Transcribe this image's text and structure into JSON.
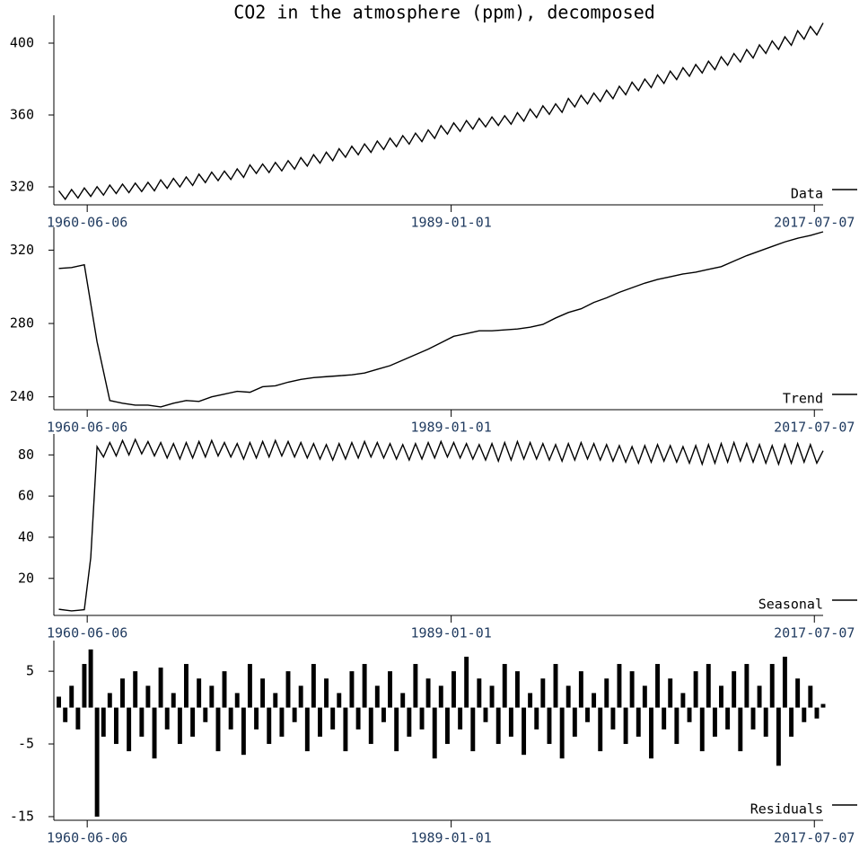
{
  "title": "CO2 in the atmosphere (ppm), decomposed",
  "chart_data": [
    {
      "type": "line",
      "x": [
        "1958-03-15",
        "1958-09-15",
        "1959-03-15",
        "1959-09-15",
        "1960-03-15",
        "1960-09-15",
        "1961-03-15",
        "1961-09-15",
        "1962-03-15",
        "1962-09-15",
        "1963-03-15",
        "1963-09-15",
        "1964-03-15",
        "1964-09-15",
        "1965-03-15",
        "1965-09-15",
        "1966-03-15",
        "1966-09-15",
        "1967-03-15",
        "1967-09-15",
        "1968-03-15",
        "1968-09-15",
        "1969-03-15",
        "1969-09-15",
        "1970-03-15",
        "1970-09-15",
        "1971-03-15",
        "1971-09-15",
        "1972-03-15",
        "1972-09-15",
        "1973-03-15",
        "1973-09-15",
        "1974-03-15",
        "1974-09-15",
        "1975-03-15",
        "1975-09-15",
        "1976-03-15",
        "1976-09-15",
        "1977-03-15",
        "1977-09-15",
        "1978-03-15",
        "1978-09-15",
        "1979-03-15",
        "1979-09-15",
        "1980-03-15",
        "1980-09-15",
        "1981-03-15",
        "1981-09-15",
        "1982-03-15",
        "1982-09-15",
        "1983-03-15",
        "1983-09-15",
        "1984-03-15",
        "1984-09-15",
        "1985-03-15",
        "1985-09-15",
        "1986-03-15",
        "1986-09-15",
        "1987-03-15",
        "1987-09-15",
        "1988-03-15",
        "1988-09-15",
        "1989-03-15",
        "1989-09-15",
        "1990-03-15",
        "1990-09-15",
        "1991-03-15",
        "1991-09-15",
        "1992-03-15",
        "1992-09-15",
        "1993-03-15",
        "1993-09-15",
        "1994-03-15",
        "1994-09-15",
        "1995-03-15",
        "1995-09-15",
        "1996-03-15",
        "1996-09-15",
        "1997-03-15",
        "1997-09-15",
        "1998-03-15",
        "1998-09-15",
        "1999-03-15",
        "1999-09-15",
        "2000-03-15",
        "2000-09-15",
        "2001-03-15",
        "2001-09-15",
        "2002-03-15",
        "2002-09-15",
        "2003-03-15",
        "2003-09-15",
        "2004-03-15",
        "2004-09-15",
        "2005-03-15",
        "2005-09-15",
        "2006-03-15",
        "2006-09-15",
        "2007-03-15",
        "2007-09-15",
        "2008-03-15",
        "2008-09-15",
        "2009-03-15",
        "2009-09-15",
        "2010-03-15",
        "2010-09-15",
        "2011-03-15",
        "2011-09-15",
        "2012-03-15",
        "2012-09-15",
        "2013-03-15",
        "2013-09-15",
        "2014-03-15",
        "2014-09-15",
        "2015-03-15",
        "2015-09-15",
        "2016-03-15",
        "2016-09-15",
        "2017-03-15",
        "2017-09-15",
        "2018-03-15"
      ],
      "series": [
        {
          "name": "Data",
          "color": "#000000",
          "values": [
            317.8,
            313.1,
            318.5,
            313.8,
            319.4,
            314.7,
            320.1,
            315.4,
            321.0,
            316.3,
            321.5,
            316.8,
            322.1,
            317.4,
            322.5,
            317.8,
            323.9,
            319.2,
            324.7,
            320.0,
            325.5,
            320.8,
            327.1,
            322.4,
            328.2,
            323.5,
            328.8,
            324.1,
            330.0,
            325.3,
            332.2,
            327.5,
            332.7,
            328.0,
            333.6,
            328.9,
            334.6,
            329.9,
            336.3,
            331.6,
            337.9,
            333.2,
            339.3,
            334.6,
            341.2,
            336.5,
            342.6,
            337.9,
            343.9,
            339.2,
            345.5,
            340.8,
            347.1,
            342.4,
            348.5,
            343.8,
            349.9,
            345.2,
            351.7,
            347.0,
            354.1,
            349.4,
            355.6,
            350.9,
            356.9,
            352.2,
            358.1,
            353.4,
            358.9,
            354.2,
            359.6,
            354.9,
            361.3,
            356.6,
            363.3,
            358.6,
            365.1,
            360.4,
            366.2,
            361.5,
            369.2,
            364.5,
            370.9,
            366.2,
            372.2,
            367.5,
            373.8,
            369.1,
            376.0,
            371.3,
            378.3,
            373.6,
            380.0,
            375.3,
            382.3,
            377.6,
            384.4,
            379.7,
            386.3,
            381.6,
            388.1,
            383.4,
            389.9,
            385.2,
            392.4,
            387.7,
            394.2,
            389.5,
            396.4,
            391.7,
            399.0,
            394.3,
            401.2,
            396.5,
            403.5,
            398.8,
            406.9,
            402.2,
            409.3,
            404.6,
            411.2
          ]
        }
      ],
      "xlim": [
        "1958-03-01",
        "2018-03-15"
      ],
      "xticks": [
        "1960-06-06",
        "1989-01-01",
        "2017-07-07"
      ],
      "ylim": [
        310,
        413
      ],
      "yticks": [
        320,
        360,
        400
      ]
    },
    {
      "type": "line",
      "x": [
        "1958-03-15",
        "1959-03-15",
        "1960-03-15",
        "1961-03-15",
        "1962-03-15",
        "1963-03-15",
        "1964-03-15",
        "1965-03-15",
        "1966-03-15",
        "1967-03-15",
        "1968-03-15",
        "1969-03-15",
        "1970-03-15",
        "1971-03-15",
        "1972-03-15",
        "1973-03-15",
        "1974-03-15",
        "1975-03-15",
        "1976-03-15",
        "1977-03-15",
        "1978-03-15",
        "1979-03-15",
        "1980-03-15",
        "1981-03-15",
        "1982-03-15",
        "1983-03-15",
        "1984-03-15",
        "1985-03-15",
        "1986-03-15",
        "1987-03-15",
        "1988-03-15",
        "1989-03-15",
        "1990-03-15",
        "1991-03-15",
        "1992-03-15",
        "1993-03-15",
        "1994-03-15",
        "1995-03-15",
        "1996-03-15",
        "1997-03-15",
        "1998-03-15",
        "1999-03-15",
        "2000-03-15",
        "2001-03-15",
        "2002-03-15",
        "2003-03-15",
        "2004-03-15",
        "2005-03-15",
        "2006-03-15",
        "2007-03-15",
        "2008-03-15",
        "2009-03-15",
        "2010-03-15",
        "2011-03-15",
        "2012-03-15",
        "2013-03-15",
        "2014-03-15",
        "2015-03-15",
        "2016-03-15",
        "2017-03-15",
        "2018-03-15"
      ],
      "series": [
        {
          "name": "Trend",
          "color": "#000000",
          "values": [
            310,
            310.5,
            312,
            270,
            238,
            236.5,
            235.5,
            235.5,
            234.5,
            236.5,
            238,
            237.5,
            240,
            241.5,
            243,
            242.5,
            245.5,
            246,
            248,
            249.5,
            250.5,
            251,
            251.5,
            252,
            253,
            255,
            257,
            260,
            263,
            266,
            269.5,
            273,
            274.5,
            276,
            276,
            276.5,
            277,
            278,
            279.5,
            283,
            286,
            288,
            291.5,
            294,
            297,
            299.5,
            302,
            304,
            305.5,
            307,
            308,
            309.5,
            311,
            314,
            317,
            319.5,
            322,
            324.5,
            326.5,
            328,
            330
          ]
        }
      ],
      "xlim": [
        "1958-03-01",
        "2018-03-15"
      ],
      "xticks": [
        "1960-06-06",
        "1989-01-01",
        "2017-07-07"
      ],
      "ylim": [
        233,
        330
      ],
      "yticks": [
        240,
        280,
        320
      ]
    },
    {
      "type": "line",
      "x": [
        "1958-03-15",
        "1958-09-15",
        "1959-03-15",
        "1959-09-15",
        "1960-03-15",
        "1960-09-15",
        "1961-03-15",
        "1961-09-15",
        "1962-03-15",
        "1962-09-15",
        "1963-03-15",
        "1963-09-15",
        "1964-03-15",
        "1964-09-15",
        "1965-03-15",
        "1965-09-15",
        "1966-03-15",
        "1966-09-15",
        "1967-03-15",
        "1967-09-15",
        "1968-03-15",
        "1968-09-15",
        "1969-03-15",
        "1969-09-15",
        "1970-03-15",
        "1970-09-15",
        "1971-03-15",
        "1971-09-15",
        "1972-03-15",
        "1972-09-15",
        "1973-03-15",
        "1973-09-15",
        "1974-03-15",
        "1974-09-15",
        "1975-03-15",
        "1975-09-15",
        "1976-03-15",
        "1976-09-15",
        "1977-03-15",
        "1977-09-15",
        "1978-03-15",
        "1978-09-15",
        "1979-03-15",
        "1979-09-15",
        "1980-03-15",
        "1980-09-15",
        "1981-03-15",
        "1981-09-15",
        "1982-03-15",
        "1982-09-15",
        "1983-03-15",
        "1983-09-15",
        "1984-03-15",
        "1984-09-15",
        "1985-03-15",
        "1985-09-15",
        "1986-03-15",
        "1986-09-15",
        "1987-03-15",
        "1987-09-15",
        "1988-03-15",
        "1988-09-15",
        "1989-03-15",
        "1989-09-15",
        "1990-03-15",
        "1990-09-15",
        "1991-03-15",
        "1991-09-15",
        "1992-03-15",
        "1992-09-15",
        "1993-03-15",
        "1993-09-15",
        "1994-03-15",
        "1994-09-15",
        "1995-03-15",
        "1995-09-15",
        "1996-03-15",
        "1996-09-15",
        "1997-03-15",
        "1997-09-15",
        "1998-03-15",
        "1998-09-15",
        "1999-03-15",
        "1999-09-15",
        "2000-03-15",
        "2000-09-15",
        "2001-03-15",
        "2001-09-15",
        "2002-03-15",
        "2002-09-15",
        "2003-03-15",
        "2003-09-15",
        "2004-03-15",
        "2004-09-15",
        "2005-03-15",
        "2005-09-15",
        "2006-03-15",
        "2006-09-15",
        "2007-03-15",
        "2007-09-15",
        "2008-03-15",
        "2008-09-15",
        "2009-03-15",
        "2009-09-15",
        "2010-03-15",
        "2010-09-15",
        "2011-03-15",
        "2011-09-15",
        "2012-03-15",
        "2012-09-15",
        "2013-03-15",
        "2013-09-15",
        "2014-03-15",
        "2014-09-15",
        "2015-03-15",
        "2015-09-15",
        "2016-03-15",
        "2016-09-15",
        "2017-03-15",
        "2017-09-15",
        "2018-03-15"
      ],
      "series": [
        {
          "name": "Seasonal",
          "color": "#000000",
          "values": [
            5,
            4.6,
            4.2,
            4.5,
            4.8,
            30,
            84,
            79,
            86,
            79.5,
            87,
            80,
            87.5,
            80.5,
            86.5,
            79.5,
            86,
            78.5,
            85.5,
            78,
            86,
            78.5,
            86.5,
            79,
            87,
            79.5,
            86,
            79,
            85.5,
            78,
            86,
            78.5,
            86.5,
            79,
            87,
            79.5,
            86.5,
            79,
            86,
            78.5,
            85.5,
            78,
            85,
            77.5,
            85.5,
            78,
            86,
            78.5,
            86.5,
            79,
            86,
            78.5,
            85.5,
            78,
            85,
            77.5,
            85.5,
            78,
            86,
            78.5,
            86.5,
            79,
            86,
            78.5,
            85.5,
            78,
            85,
            77.5,
            85.5,
            77,
            86,
            77.5,
            86.5,
            78,
            86,
            78,
            85.5,
            77.5,
            85,
            77,
            85.5,
            77.5,
            86,
            78,
            85.5,
            77.5,
            85,
            77,
            84.5,
            76.5,
            84,
            76,
            84.5,
            76.5,
            85,
            77,
            84.5,
            76.5,
            84,
            76,
            84.5,
            75.5,
            85,
            76,
            85.5,
            76.5,
            86,
            77,
            85.5,
            76.5,
            85,
            76,
            84.5,
            75.5,
            85,
            76,
            85.5,
            76.5,
            85,
            76,
            82
          ]
        }
      ],
      "xlim": [
        "1958-03-01",
        "2018-03-15"
      ],
      "xticks": [
        "1960-06-06",
        "1989-01-01",
        "2017-07-07"
      ],
      "ylim": [
        2,
        88
      ],
      "yticks": [
        20,
        40,
        60,
        80
      ]
    },
    {
      "type": "bar",
      "x": [
        "1958-03-15",
        "1958-09-15",
        "1959-03-15",
        "1959-09-15",
        "1960-03-15",
        "1960-09-15",
        "1961-03-15",
        "1961-09-15",
        "1962-03-15",
        "1962-09-15",
        "1963-03-15",
        "1963-09-15",
        "1964-03-15",
        "1964-09-15",
        "1965-03-15",
        "1965-09-15",
        "1966-03-15",
        "1966-09-15",
        "1967-03-15",
        "1967-09-15",
        "1968-03-15",
        "1968-09-15",
        "1969-03-15",
        "1969-09-15",
        "1970-03-15",
        "1970-09-15",
        "1971-03-15",
        "1971-09-15",
        "1972-03-15",
        "1972-09-15",
        "1973-03-15",
        "1973-09-15",
        "1974-03-15",
        "1974-09-15",
        "1975-03-15",
        "1975-09-15",
        "1976-03-15",
        "1976-09-15",
        "1977-03-15",
        "1977-09-15",
        "1978-03-15",
        "1978-09-15",
        "1979-03-15",
        "1979-09-15",
        "1980-03-15",
        "1980-09-15",
        "1981-03-15",
        "1981-09-15",
        "1982-03-15",
        "1982-09-15",
        "1983-03-15",
        "1983-09-15",
        "1984-03-15",
        "1984-09-15",
        "1985-03-15",
        "1985-09-15",
        "1986-03-15",
        "1986-09-15",
        "1987-03-15",
        "1987-09-15",
        "1988-03-15",
        "1988-09-15",
        "1989-03-15",
        "1989-09-15",
        "1990-03-15",
        "1990-09-15",
        "1991-03-15",
        "1991-09-15",
        "1992-03-15",
        "1992-09-15",
        "1993-03-15",
        "1993-09-15",
        "1994-03-15",
        "1994-09-15",
        "1995-03-15",
        "1995-09-15",
        "1996-03-15",
        "1996-09-15",
        "1997-03-15",
        "1997-09-15",
        "1998-03-15",
        "1998-09-15",
        "1999-03-15",
        "1999-09-15",
        "2000-03-15",
        "2000-09-15",
        "2001-03-15",
        "2001-09-15",
        "2002-03-15",
        "2002-09-15",
        "2003-03-15",
        "2003-09-15",
        "2004-03-15",
        "2004-09-15",
        "2005-03-15",
        "2005-09-15",
        "2006-03-15",
        "2006-09-15",
        "2007-03-15",
        "2007-09-15",
        "2008-03-15",
        "2008-09-15",
        "2009-03-15",
        "2009-09-15",
        "2010-03-15",
        "2010-09-15",
        "2011-03-15",
        "2011-09-15",
        "2012-03-15",
        "2012-09-15",
        "2013-03-15",
        "2013-09-15",
        "2014-03-15",
        "2014-09-15",
        "2015-03-15",
        "2015-09-15",
        "2016-03-15",
        "2016-09-15",
        "2017-03-15",
        "2017-09-15",
        "2018-03-15"
      ],
      "series": [
        {
          "name": "Residuals",
          "color": "#000000",
          "values": [
            1.5,
            -2,
            3,
            -3,
            6,
            8,
            -15,
            -4,
            2,
            -5,
            4,
            -6,
            5,
            -4,
            3,
            -7,
            5.5,
            -3,
            2,
            -5,
            6,
            -4,
            4,
            -2,
            3,
            -6,
            5,
            -3,
            2,
            -6.5,
            6,
            -3,
            4,
            -5,
            2,
            -4,
            5,
            -2,
            3,
            -6,
            6,
            -4,
            4,
            -3,
            2,
            -6,
            5,
            -3,
            6,
            -5,
            3,
            -2,
            5,
            -6,
            2,
            -4,
            6,
            -3,
            4,
            -7,
            3,
            -5,
            5,
            -3,
            7,
            -6,
            4,
            -2,
            3,
            -5,
            6,
            -4,
            5,
            -6.5,
            2,
            -3,
            4,
            -5,
            6,
            -7,
            3,
            -4,
            5,
            -2,
            2,
            -6,
            4,
            -3,
            6,
            -5,
            5,
            -4,
            3,
            -7,
            6,
            -3,
            4,
            -5,
            2,
            -2,
            5,
            -6,
            6,
            -4,
            3,
            -3,
            5,
            -6,
            6,
            -3,
            3,
            -4,
            6,
            -8,
            7,
            -4,
            4,
            -2,
            3,
            -1.5,
            0.5
          ]
        }
      ],
      "xlim": [
        "1958-03-01",
        "2018-03-15"
      ],
      "xticks": [
        "1960-06-06",
        "1989-01-01",
        "2017-07-07"
      ],
      "ylim": [
        -15.5,
        8.6
      ],
      "yticks": [
        -15,
        -5,
        5
      ]
    }
  ]
}
